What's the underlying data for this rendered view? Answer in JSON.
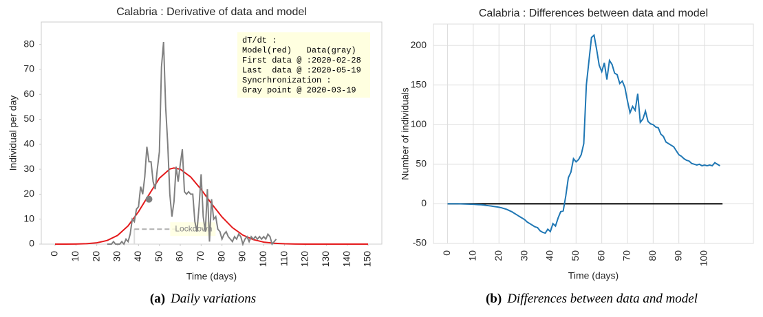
{
  "chart_data": [
    {
      "type": "line",
      "title": "Calabria : Derivative of data and model",
      "xlabel": "Time (days)",
      "ylabel": "Individual per day",
      "xlim": [
        -6.6,
        156.6
      ],
      "ylim": [
        0,
        89
      ],
      "xticks": [
        0,
        10,
        20,
        30,
        40,
        50,
        60,
        70,
        80,
        90,
        100,
        110,
        120,
        130,
        140,
        150
      ],
      "yticks": [
        0,
        10,
        20,
        30,
        40,
        50,
        60,
        70,
        80
      ],
      "grid": false,
      "series": [
        {
          "color": "#e41a1c",
          "x": [
            0,
            5,
            10,
            15,
            20,
            25,
            30,
            35,
            40,
            45,
            50,
            55,
            57,
            60,
            65,
            70,
            75,
            80,
            85,
            90,
            95,
            100,
            105,
            110,
            115,
            120,
            125,
            130,
            135,
            140,
            145,
            150
          ],
          "values": [
            0,
            0.01,
            0.04,
            0.16,
            0.53,
            1.47,
            3.5,
            7.3,
            13.0,
            19.8,
            26.4,
            30.1,
            30.5,
            30.0,
            26.9,
            21.9,
            16.2,
            10.9,
            6.6,
            3.6,
            1.8,
            0.8,
            0.34,
            0.13,
            0.04,
            0.01,
            0,
            0,
            0,
            0,
            0,
            0
          ]
        },
        {
          "color": "#808080",
          "x": [
            25,
            26,
            27,
            28,
            29,
            30,
            31,
            32,
            33,
            34,
            35,
            36,
            37,
            38,
            39,
            40,
            41,
            42,
            43,
            44,
            45,
            46,
            47,
            48,
            49,
            50,
            51,
            52,
            53,
            54,
            55,
            56,
            57,
            58,
            59,
            60,
            61,
            62,
            63,
            64,
            65,
            66,
            67,
            68,
            69,
            70,
            71,
            72,
            73,
            74,
            75,
            76,
            77,
            78,
            79,
            80,
            81,
            82,
            83,
            84,
            85,
            86,
            87,
            88,
            89,
            90,
            91,
            92,
            93,
            94,
            95,
            96,
            97,
            98,
            99,
            100,
            101,
            102,
            103,
            104,
            105,
            106
          ],
          "values": [
            0,
            0,
            0,
            1,
            0,
            0,
            0,
            1,
            0,
            2,
            1,
            4,
            10,
            9,
            14,
            15,
            23,
            20,
            27,
            39,
            33,
            33,
            25,
            22,
            30,
            37,
            71,
            81,
            55,
            40,
            20,
            11,
            17,
            31,
            25,
            32,
            38,
            21,
            20,
            21,
            20,
            20,
            9,
            5,
            15,
            28,
            11,
            5,
            22,
            1,
            18,
            10,
            11,
            6,
            5,
            2,
            4,
            5,
            3,
            2,
            1,
            3,
            2,
            4,
            3,
            0,
            2,
            3,
            1,
            3,
            2,
            3,
            2,
            3,
            2,
            3,
            2,
            4,
            3,
            0,
            1,
            2
          ]
        }
      ],
      "point": {
        "x": 45,
        "y": 18,
        "color": "#7f7f7f"
      },
      "lockdown": {
        "label": "Lockdown",
        "x": [
          38,
          75
        ],
        "y": 6
      },
      "annotation": [
        "dT/dt :",
        "Model(red)   Data(gray)",
        "First data @ :2020-02-28",
        "Last  data @ :2020-05-19",
        "Syncrhronization :",
        "Gray point @ 2020-03-19"
      ]
    },
    {
      "type": "line",
      "title": "Calabria : Differences between data and model",
      "xlabel": "Time (days)",
      "ylabel": "Number of individuals",
      "xlim": [
        -5.5,
        119
      ],
      "ylim": [
        -50,
        227
      ],
      "xticks": [
        0,
        10,
        20,
        30,
        40,
        50,
        60,
        70,
        80,
        90,
        100
      ],
      "yticks": [
        -50,
        0,
        50,
        100,
        150,
        200
      ],
      "grid": true,
      "series": [
        {
          "color": "#1f77b4",
          "x": [
            0,
            1,
            2,
            3,
            4,
            5,
            6,
            7,
            8,
            9,
            10,
            11,
            12,
            13,
            14,
            15,
            16,
            17,
            18,
            19,
            20,
            21,
            22,
            23,
            24,
            25,
            26,
            27,
            28,
            29,
            30,
            31,
            32,
            33,
            34,
            35,
            36,
            37,
            38,
            39,
            40,
            41,
            42,
            43,
            44,
            45,
            46,
            47,
            48,
            49,
            50,
            51,
            52,
            53,
            54,
            55,
            56,
            57,
            58,
            59,
            60,
            61,
            62,
            63,
            64,
            65,
            66,
            67,
            68,
            69,
            70,
            71,
            72,
            73,
            74,
            75,
            76,
            77,
            78,
            79,
            80,
            81,
            82,
            83,
            84,
            85,
            86,
            87,
            88,
            89,
            90,
            91,
            92,
            93,
            94,
            95,
            96,
            97,
            98,
            99,
            100,
            101,
            102,
            103,
            104,
            105,
            106
          ],
          "values": [
            0,
            0,
            0,
            0,
            0,
            -0.1,
            -0.2,
            -0.3,
            -0.4,
            -0.5,
            -0.6,
            -0.8,
            -1,
            -1.2,
            -1.5,
            -2,
            -2.4,
            -2.8,
            -3.3,
            -3.8,
            -4.3,
            -5,
            -6,
            -7,
            -8.5,
            -10,
            -12,
            -14,
            -16,
            -18,
            -20,
            -23,
            -25,
            -27,
            -29,
            -30,
            -34,
            -36,
            -37,
            -32,
            -35,
            -25,
            -28,
            -18,
            -10,
            -9,
            10,
            33,
            40,
            57,
            53,
            56,
            62,
            76,
            150,
            180,
            210,
            213,
            195,
            175,
            167,
            178,
            157,
            181,
            176,
            165,
            163,
            152,
            155,
            147,
            130,
            115,
            123,
            118,
            139,
            103,
            107,
            117,
            104,
            101,
            100,
            97,
            96,
            88,
            85,
            78,
            76,
            74,
            72,
            67,
            62,
            60,
            57,
            55,
            54,
            51,
            50,
            49,
            50,
            48,
            49,
            48,
            49,
            48,
            52,
            50,
            48
          ]
        }
      ],
      "reference_line": {
        "y": 0,
        "x": [
          0,
          107
        ],
        "color": "#000000"
      }
    }
  ],
  "captions": [
    {
      "label": "(a)",
      "text": "Daily variations"
    },
    {
      "label": "(b)",
      "text": "Differences between data and model"
    }
  ]
}
